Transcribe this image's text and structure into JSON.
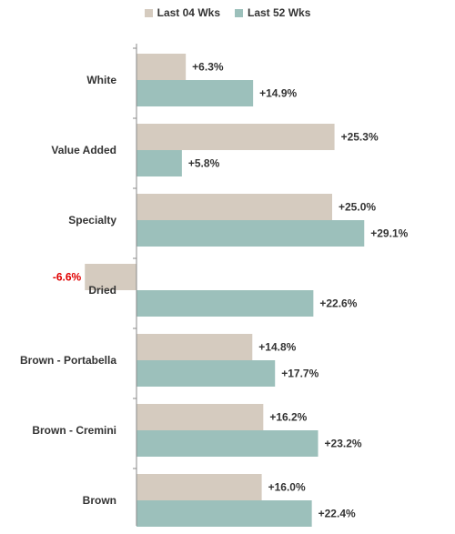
{
  "chart_data": {
    "type": "bar",
    "orientation": "horizontal",
    "categories": [
      "White",
      "Value Added",
      "Specialty",
      "Dried",
      "Brown - Portabella",
      "Brown - Cremini",
      "Brown"
    ],
    "series": [
      {
        "name": "Last 04 Wks",
        "color": "#d5cbbf",
        "values": [
          6.3,
          25.3,
          25.0,
          -6.6,
          14.8,
          16.2,
          16.0
        ],
        "labels": [
          "+6.3%",
          "+25.3%",
          "+25.0%",
          "-6.6%",
          "+14.8%",
          "+16.2%",
          "+16.0%"
        ]
      },
      {
        "name": "Last 52 Wks",
        "color": "#9cc0bb",
        "values": [
          14.9,
          5.8,
          29.1,
          22.6,
          17.7,
          23.2,
          22.4
        ],
        "labels": [
          "+14.9%",
          "+5.8%",
          "+29.1%",
          "+22.6%",
          "+17.7%",
          "+23.2%",
          "+22.4%"
        ]
      }
    ],
    "negative_label_color": "#e00000",
    "legend_position": "top",
    "grid": false
  }
}
